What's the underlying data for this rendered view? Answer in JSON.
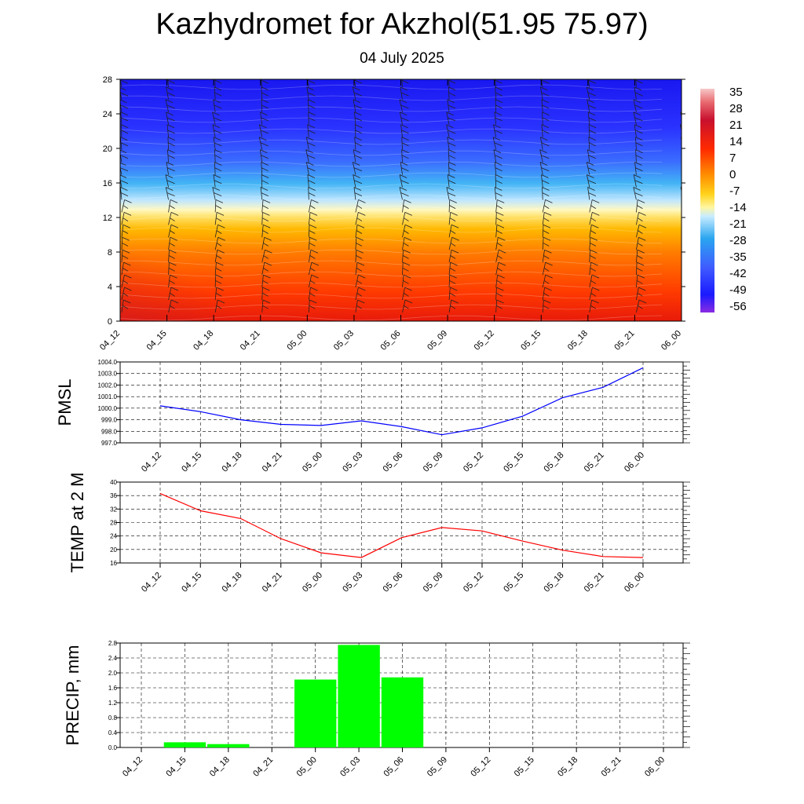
{
  "title": "Kazhydromet for Akzhol(51.95 75.97)",
  "subtitle": "04 July 2025",
  "time_labels": [
    "04_12",
    "04_15",
    "04_18",
    "04_21",
    "05_00",
    "05_03",
    "05_06",
    "05_09",
    "05_12",
    "05_15",
    "05_18",
    "05_21",
    "06_00"
  ],
  "chart_data": [
    {
      "type": "heatmap",
      "name": "",
      "y_ticks": [
        0,
        4,
        8,
        12,
        16,
        20,
        24,
        28
      ],
      "ylim": [
        0,
        28
      ],
      "colorbar_ticks": [
        35,
        28,
        21,
        14,
        7,
        0,
        -7,
        -14,
        -21,
        -28,
        -35,
        -42,
        -49,
        -56
      ],
      "colorbar_range": [
        -60,
        38
      ],
      "level_profile": [
        {
          "h": 0,
          "v": 22
        },
        {
          "h": 4,
          "v": 18
        },
        {
          "h": 8,
          "v": 11
        },
        {
          "h": 12,
          "v": 1
        },
        {
          "h": 13,
          "v": -7
        },
        {
          "h": 14,
          "v": -14
        },
        {
          "h": 16,
          "v": -28
        },
        {
          "h": 20,
          "v": -45
        },
        {
          "h": 24,
          "v": -55
        },
        {
          "h": 28,
          "v": -58
        }
      ],
      "grid": false
    },
    {
      "type": "line",
      "ylabel": "PMSL",
      "y_ticks": [
        997.0,
        998.0,
        999.0,
        1000.0,
        1001.0,
        1002.0,
        1003.0,
        1004.0
      ],
      "ylim": [
        997,
        1004
      ],
      "color": "#0000ff",
      "values": [
        1000.2,
        999.7,
        999.0,
        998.6,
        998.5,
        998.9,
        998.4,
        997.7,
        998.3,
        999.3,
        1000.9,
        1001.8,
        1003.5
      ],
      "grid": true
    },
    {
      "type": "line",
      "ylabel": "TEMP at 2 M",
      "y_ticks": [
        16,
        20,
        24,
        28,
        32,
        36,
        40
      ],
      "ylim": [
        16,
        40
      ],
      "color": "#ff0000",
      "values": [
        36.6,
        31.5,
        29.2,
        23.2,
        19.0,
        17.6,
        23.5,
        26.5,
        25.5,
        22.5,
        19.8,
        17.9,
        17.6
      ],
      "grid": true
    },
    {
      "type": "bar",
      "ylabel": "PRECIP, mm",
      "y_ticks": [
        0.0,
        0.4,
        0.8,
        1.2,
        1.6,
        2.0,
        2.4,
        2.8
      ],
      "ylim": [
        0,
        2.8
      ],
      "color": "#00ff00",
      "values": [
        0,
        0.14,
        0.09,
        0,
        1.82,
        2.75,
        1.88,
        0,
        0,
        0,
        0,
        0,
        0
      ],
      "grid": true
    }
  ]
}
